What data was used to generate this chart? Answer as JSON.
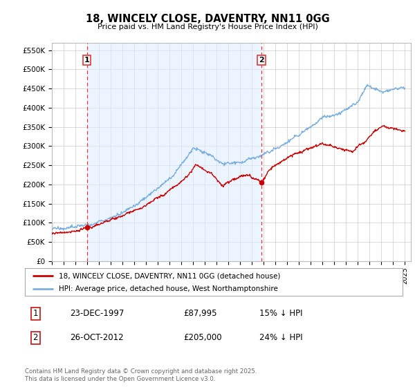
{
  "title": "18, WINCELY CLOSE, DAVENTRY, NN11 0GG",
  "subtitle": "Price paid vs. HM Land Registry's House Price Index (HPI)",
  "ylabel_ticks": [
    "£0",
    "£50K",
    "£100K",
    "£150K",
    "£200K",
    "£250K",
    "£300K",
    "£350K",
    "£400K",
    "£450K",
    "£500K",
    "£550K"
  ],
  "ytick_values": [
    0,
    50000,
    100000,
    150000,
    200000,
    250000,
    300000,
    350000,
    400000,
    450000,
    500000,
    550000
  ],
  "ylim": [
    0,
    570000
  ],
  "xlim_start": 1995.0,
  "xlim_end": 2025.5,
  "transaction1_year": 1997.97,
  "transaction1_price": 87995,
  "transaction2_year": 2012.82,
  "transaction2_price": 205000,
  "color_red": "#cc0000",
  "color_blue": "#7aafe0",
  "color_grid": "#cccccc",
  "color_vline": "#ee3333",
  "color_fill": "#ddeeff",
  "legend_label_red": "18, WINCELY CLOSE, DAVENTRY, NN11 0GG (detached house)",
  "legend_label_blue": "HPI: Average price, detached house, West Northamptonshire",
  "table_row1": [
    "1",
    "23-DEC-1997",
    "£87,995",
    "15% ↓ HPI"
  ],
  "table_row2": [
    "2",
    "26-OCT-2012",
    "£205,000",
    "24% ↓ HPI"
  ],
  "footnote": "Contains HM Land Registry data © Crown copyright and database right 2025.\nThis data is licensed under the Open Government Licence v3.0.",
  "background_color": "#ffffff",
  "plot_bg_color": "#ffffff",
  "xtick_years": [
    1995,
    1996,
    1997,
    1998,
    1999,
    2000,
    2001,
    2002,
    2003,
    2004,
    2005,
    2006,
    2007,
    2008,
    2009,
    2010,
    2011,
    2012,
    2013,
    2014,
    2015,
    2016,
    2017,
    2018,
    2019,
    2020,
    2021,
    2022,
    2023,
    2024,
    2025
  ]
}
